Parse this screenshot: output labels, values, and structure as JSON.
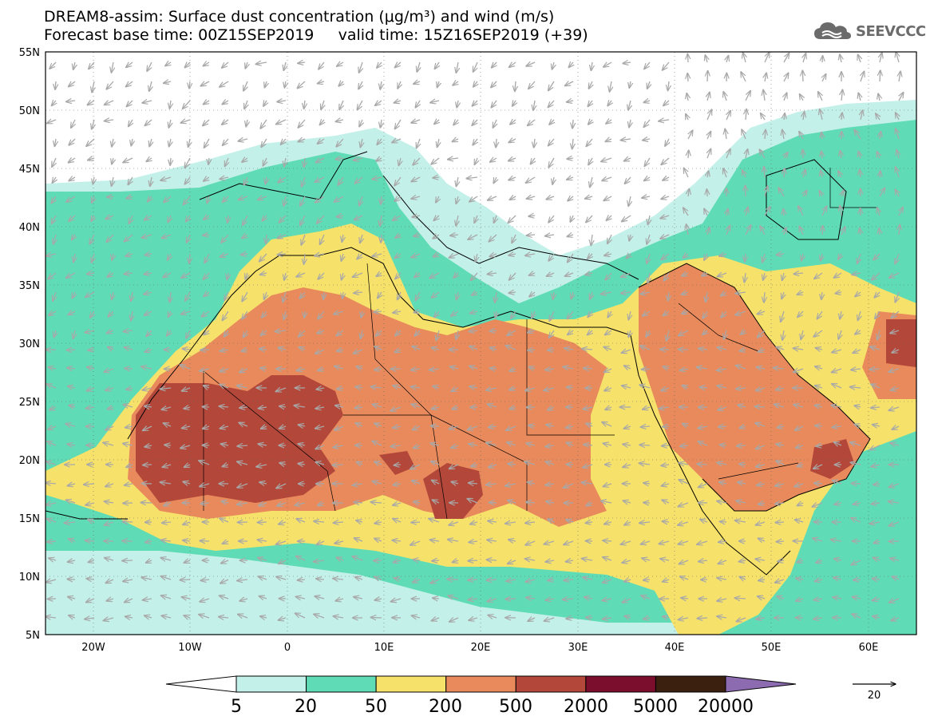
{
  "title": {
    "line1": "DREAM8-assim: Surface dust concentration (μg/m³) and wind (m/s)",
    "line2": "Forecast base time: 00Z15SEP2019     valid time: 15Z16SEP2019 (+39)"
  },
  "logo": {
    "text": "SEEVCCC",
    "icon": "cloud-icon"
  },
  "map": {
    "lat_labels": [
      "55N",
      "50N",
      "45N",
      "40N",
      "35N",
      "30N",
      "25N",
      "20N",
      "15N",
      "10N",
      "5N"
    ],
    "lon_labels": [
      "20W",
      "10W",
      "0",
      "10E",
      "20E",
      "30E",
      "40E",
      "50E",
      "60E"
    ],
    "lat_range": [
      5,
      55
    ],
    "lon_range": [
      -25,
      65
    ],
    "grid": "dotted",
    "wind_vectors": "grey arrows"
  },
  "colorbar": {
    "levels": [
      "5",
      "20",
      "50",
      "200",
      "500",
      "2000",
      "5000",
      "20000"
    ],
    "colors": [
      "#c4f0ea",
      "#5fdcb5",
      "#f6e26a",
      "#e88a5c",
      "#b2473a",
      "#7a0e2c",
      "#3b2010",
      "#8c6bb0"
    ],
    "under_color": "#ffffff",
    "over_color": "#8c6bb0"
  },
  "reference_vector": {
    "label": "20"
  }
}
